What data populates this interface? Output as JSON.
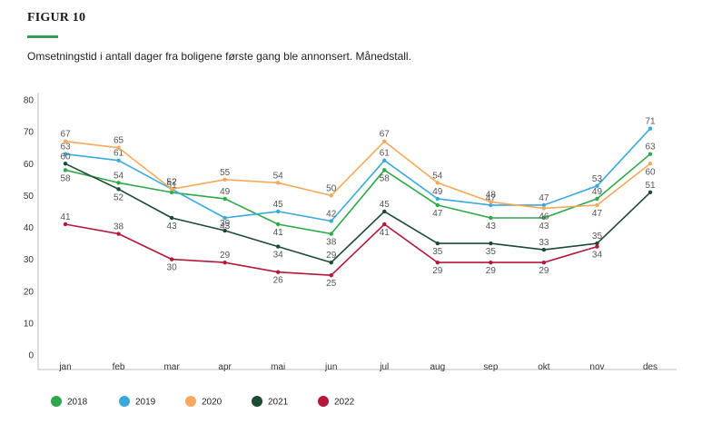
{
  "header": {
    "figure_label": "FIGUR 10",
    "subtitle": "Omsetningstid i antall dager fra boligene første gang ble annonsert. Månedstall."
  },
  "colors": {
    "accent": "#2e9e4f"
  },
  "chart_data": {
    "type": "line",
    "categories": [
      "jan",
      "feb",
      "mar",
      "apr",
      "mai",
      "jun",
      "jul",
      "aug",
      "sep",
      "okt",
      "nov",
      "des"
    ],
    "ylim": [
      0,
      80
    ],
    "yticks": [
      0,
      10,
      20,
      30,
      40,
      50,
      60,
      70,
      80
    ],
    "grid": false,
    "legend_position": "bottom-left",
    "series": [
      {
        "name": "2018",
        "color": "#2ea84a",
        "values": [
          58,
          54,
          51,
          49,
          41,
          38,
          58,
          47,
          43,
          43,
          49,
          63
        ]
      },
      {
        "name": "2019",
        "color": "#39a9dc",
        "values": [
          63,
          61,
          52,
          43,
          45,
          42,
          61,
          49,
          47,
          47,
          53,
          71
        ]
      },
      {
        "name": "2020",
        "color": "#f5a95a",
        "values": [
          67,
          65,
          52,
          55,
          54,
          50,
          67,
          54,
          48,
          46,
          47,
          60
        ]
      },
      {
        "name": "2021",
        "color": "#1c4a33",
        "values": [
          60,
          52,
          43,
          39,
          34,
          29,
          45,
          35,
          35,
          33,
          35,
          51
        ]
      },
      {
        "name": "2022",
        "color": "#b5163a",
        "values": [
          41,
          38,
          30,
          29,
          26,
          25,
          41,
          29,
          29,
          29,
          34,
          null
        ]
      }
    ]
  }
}
